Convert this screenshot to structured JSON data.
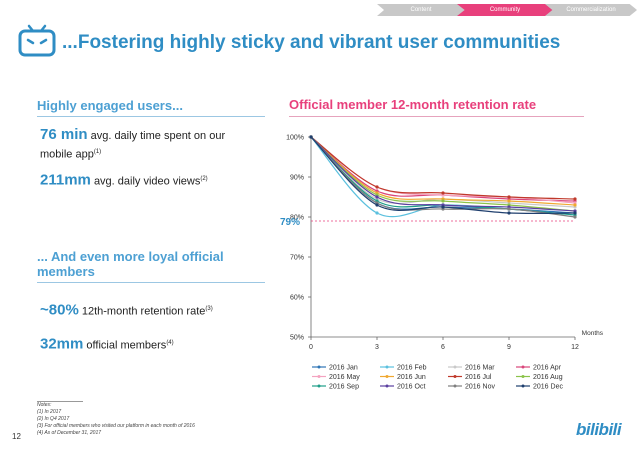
{
  "nav": {
    "tabs": [
      {
        "label": "Content"
      },
      {
        "label": "Community"
      },
      {
        "label": "Commercialization"
      }
    ]
  },
  "title": "...Fostering highly sticky and vibrant user communities",
  "left": {
    "engaged_heading": "Highly engaged users...",
    "time_value": "76 min",
    "time_text": "avg. daily time spent on our",
    "time_text2": "mobile app",
    "time_note": "(1)",
    "views_value": "211mm",
    "views_text": "avg. daily video views",
    "views_note": "(2)",
    "loyal_heading_1": "... And even more loyal official",
    "loyal_heading_2": "members",
    "retention_value": "~80%",
    "retention_text": "12th-month retention rate",
    "retention_note": "(3)",
    "members_value": "32mm",
    "members_text": "official members",
    "members_note": "(4)"
  },
  "chart_heading": "Official member 12-month retention rate",
  "footnotes": {
    "title": "Notes:",
    "items": [
      "(1)    In 2017",
      "(2)    In Q4 2017",
      "(3)    For official members who visited our platform in each month of 2016",
      "(4)    As of December 31, 2017"
    ]
  },
  "page_number": "12",
  "logo_text": "bilibili",
  "chart_data": {
    "type": "line",
    "title": "Official member 12-month retention rate",
    "xlabel": "Months",
    "ylabel": "",
    "x": [
      0,
      3,
      6,
      9,
      12
    ],
    "xticks": [
      "0",
      "3",
      "6",
      "9",
      "12"
    ],
    "yticks": [
      "50%",
      "60%",
      "70%",
      "80%",
      "90%",
      "100%"
    ],
    "ylim": [
      50,
      100
    ],
    "xlim": [
      0,
      12
    ],
    "reference": {
      "label": "79%",
      "value": 79
    },
    "series": [
      {
        "name": "2016 Jan",
        "color": "#2e75b6",
        "values": [
          100,
          83.5,
          82.5,
          82.0,
          81.0
        ]
      },
      {
        "name": "2016 Feb",
        "color": "#5bc0de",
        "values": [
          100,
          81.0,
          83.0,
          82.0,
          80.5
        ]
      },
      {
        "name": "2016 Mar",
        "color": "#c9c9c9",
        "values": [
          100,
          84.5,
          84.5,
          83.5,
          82.5
        ]
      },
      {
        "name": "2016 Apr",
        "color": "#d9467a",
        "values": [
          100,
          86.5,
          85.5,
          84.5,
          84.0
        ]
      },
      {
        "name": "2016 May",
        "color": "#f4a3c0",
        "values": [
          100,
          87.5,
          85.5,
          85.0,
          83.5
        ]
      },
      {
        "name": "2016 Jun",
        "color": "#f0a830",
        "values": [
          100,
          86.0,
          84.5,
          84.0,
          83.0
        ]
      },
      {
        "name": "2016 Jul",
        "color": "#c0392b",
        "values": [
          100,
          87.5,
          86.0,
          85.0,
          84.5
        ]
      },
      {
        "name": "2016 Aug",
        "color": "#8bc34a",
        "values": [
          100,
          85.5,
          84.0,
          83.0,
          81.5
        ]
      },
      {
        "name": "2016 Sep",
        "color": "#1f9e89",
        "values": [
          100,
          84.0,
          83.0,
          82.0,
          80.5
        ]
      },
      {
        "name": "2016 Oct",
        "color": "#5b3fa0",
        "values": [
          100,
          85.0,
          83.0,
          82.5,
          81.5
        ]
      },
      {
        "name": "2016 Nov",
        "color": "#7f7f7f",
        "values": [
          100,
          83.5,
          82.0,
          82.0,
          80.0
        ]
      },
      {
        "name": "2016 Dec",
        "color": "#1f3f6e",
        "values": [
          100,
          83.0,
          82.5,
          81.0,
          81.0
        ]
      }
    ]
  }
}
